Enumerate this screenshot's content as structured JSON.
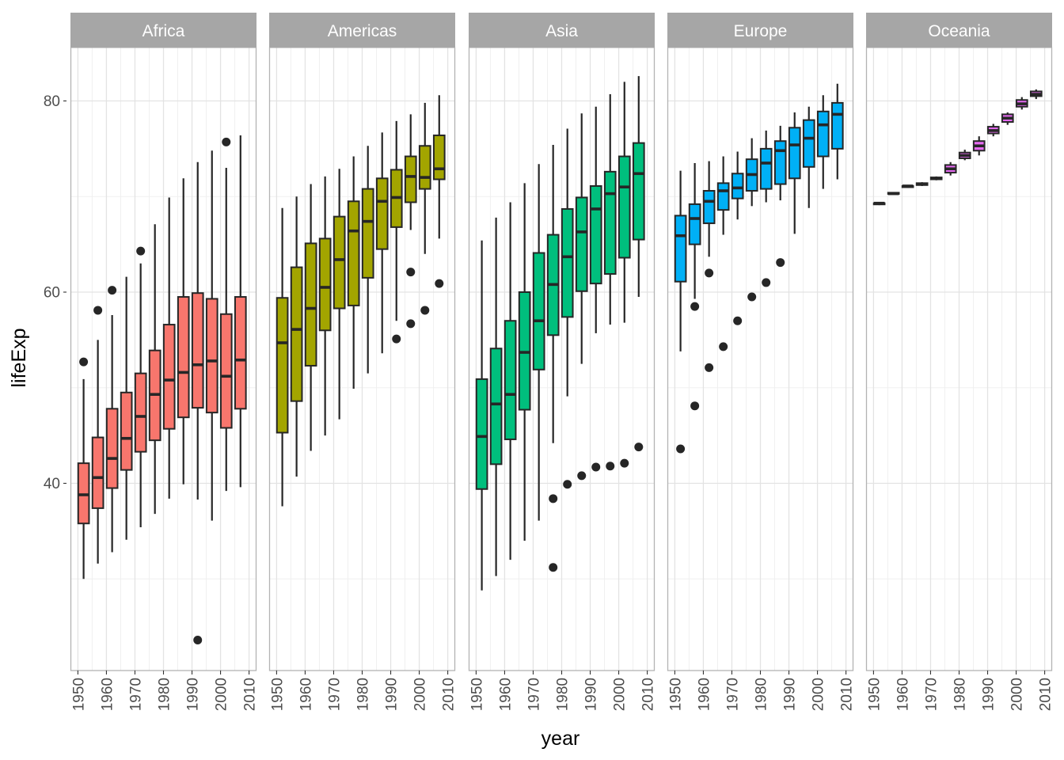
{
  "chart_data": {
    "type": "boxplot",
    "facet_by": "continent",
    "xlabel": "year",
    "ylabel": "lifeExp",
    "xlim": [
      1950,
      2010
    ],
    "ylim": [
      21.5,
      86
    ],
    "x_ticks": [
      "1950",
      "1960",
      "1970",
      "1980",
      "1990",
      "2000",
      "2010"
    ],
    "y_ticks": [
      40,
      60,
      80
    ],
    "grid": true,
    "legend": "none",
    "panels": [
      {
        "name": "Africa",
        "color": "#F8766D",
        "boxes": [
          {
            "x": 1952,
            "lower": 30.0,
            "q1": 35.8,
            "median": 38.8,
            "q3": 42.1,
            "upper": 50.9,
            "outliers": [
              52.7
            ]
          },
          {
            "x": 1957,
            "lower": 31.6,
            "q1": 37.4,
            "median": 40.6,
            "q3": 44.8,
            "upper": 55.0,
            "outliers": [
              58.1
            ]
          },
          {
            "x": 1962,
            "lower": 32.8,
            "q1": 39.5,
            "median": 42.6,
            "q3": 47.8,
            "upper": 57.6,
            "outliers": [
              60.2
            ]
          },
          {
            "x": 1967,
            "lower": 34.1,
            "q1": 41.4,
            "median": 44.7,
            "q3": 49.5,
            "upper": 61.6,
            "outliers": []
          },
          {
            "x": 1972,
            "lower": 35.4,
            "q1": 43.3,
            "median": 47.0,
            "q3": 51.5,
            "upper": 63.0,
            "outliers": [
              64.3
            ]
          },
          {
            "x": 1977,
            "lower": 36.8,
            "q1": 44.5,
            "median": 49.3,
            "q3": 53.9,
            "upper": 67.1,
            "outliers": []
          },
          {
            "x": 1982,
            "lower": 38.4,
            "q1": 45.7,
            "median": 50.8,
            "q3": 56.6,
            "upper": 69.9,
            "outliers": []
          },
          {
            "x": 1987,
            "lower": 39.9,
            "q1": 46.9,
            "median": 51.6,
            "q3": 59.5,
            "upper": 71.9,
            "outliers": []
          },
          {
            "x": 1992,
            "lower": 38.3,
            "q1": 47.9,
            "median": 52.4,
            "q3": 59.9,
            "upper": 73.6,
            "outliers": [
              23.6
            ]
          },
          {
            "x": 1997,
            "lower": 36.1,
            "q1": 47.4,
            "median": 52.8,
            "q3": 59.3,
            "upper": 74.8,
            "outliers": []
          },
          {
            "x": 2002,
            "lower": 39.2,
            "q1": 45.8,
            "median": 51.2,
            "q3": 57.7,
            "upper": 73.0,
            "outliers": [
              75.7
            ]
          },
          {
            "x": 2007,
            "lower": 39.6,
            "q1": 47.8,
            "median": 52.9,
            "q3": 59.5,
            "upper": 76.4,
            "outliers": []
          }
        ]
      },
      {
        "name": "Americas",
        "color": "#A3A500",
        "boxes": [
          {
            "x": 1952,
            "lower": 37.6,
            "q1": 45.3,
            "median": 54.7,
            "q3": 59.4,
            "upper": 68.8,
            "outliers": []
          },
          {
            "x": 1957,
            "lower": 40.7,
            "q1": 48.6,
            "median": 56.1,
            "q3": 62.6,
            "upper": 70.0,
            "outliers": []
          },
          {
            "x": 1962,
            "lower": 43.4,
            "q1": 52.3,
            "median": 58.3,
            "q3": 65.1,
            "upper": 71.3,
            "outliers": []
          },
          {
            "x": 1967,
            "lower": 45.0,
            "q1": 56.0,
            "median": 60.5,
            "q3": 65.6,
            "upper": 72.1,
            "outliers": []
          },
          {
            "x": 1972,
            "lower": 46.7,
            "q1": 58.3,
            "median": 63.4,
            "q3": 67.9,
            "upper": 72.9,
            "outliers": []
          },
          {
            "x": 1977,
            "lower": 49.9,
            "q1": 58.6,
            "median": 66.4,
            "q3": 69.5,
            "upper": 74.2,
            "outliers": []
          },
          {
            "x": 1982,
            "lower": 51.5,
            "q1": 61.5,
            "median": 67.4,
            "q3": 70.8,
            "upper": 75.3,
            "outliers": []
          },
          {
            "x": 1987,
            "lower": 53.6,
            "q1": 64.5,
            "median": 69.5,
            "q3": 71.9,
            "upper": 76.7,
            "outliers": []
          },
          {
            "x": 1992,
            "lower": 57.0,
            "q1": 66.8,
            "median": 69.9,
            "q3": 72.8,
            "upper": 77.9,
            "outliers": [
              55.1
            ]
          },
          {
            "x": 1997,
            "lower": 66.5,
            "q1": 69.4,
            "median": 72.1,
            "q3": 74.2,
            "upper": 78.6,
            "outliers": [
              56.7,
              62.1
            ]
          },
          {
            "x": 2002,
            "lower": 64.0,
            "q1": 70.8,
            "median": 72.0,
            "q3": 75.3,
            "upper": 79.8,
            "outliers": [
              58.1
            ]
          },
          {
            "x": 2007,
            "lower": 65.6,
            "q1": 71.8,
            "median": 72.9,
            "q3": 76.4,
            "upper": 80.6,
            "outliers": [
              60.9
            ]
          }
        ]
      },
      {
        "name": "Asia",
        "color": "#00BF7D",
        "boxes": [
          {
            "x": 1952,
            "lower": 28.8,
            "q1": 39.4,
            "median": 44.9,
            "q3": 50.9,
            "upper": 65.4,
            "outliers": []
          },
          {
            "x": 1957,
            "lower": 30.3,
            "q1": 42.0,
            "median": 48.3,
            "q3": 54.1,
            "upper": 67.8,
            "outliers": []
          },
          {
            "x": 1962,
            "lower": 32.0,
            "q1": 44.6,
            "median": 49.3,
            "q3": 57.0,
            "upper": 69.4,
            "outliers": []
          },
          {
            "x": 1967,
            "lower": 34.0,
            "q1": 47.7,
            "median": 53.7,
            "q3": 60.0,
            "upper": 71.4,
            "outliers": []
          },
          {
            "x": 1972,
            "lower": 36.1,
            "q1": 51.9,
            "median": 57.0,
            "q3": 64.1,
            "upper": 73.4,
            "outliers": []
          },
          {
            "x": 1977,
            "lower": 44.2,
            "q1": 55.5,
            "median": 60.8,
            "q3": 66.0,
            "upper": 75.4,
            "outliers": [
              38.4,
              31.2
            ]
          },
          {
            "x": 1982,
            "lower": 49.1,
            "q1": 57.4,
            "median": 63.7,
            "q3": 68.7,
            "upper": 77.1,
            "outliers": [
              39.9
            ]
          },
          {
            "x": 1987,
            "lower": 52.5,
            "q1": 60.1,
            "median": 66.3,
            "q3": 69.9,
            "upper": 78.7,
            "outliers": [
              40.8
            ]
          },
          {
            "x": 1992,
            "lower": 55.7,
            "q1": 60.9,
            "median": 68.7,
            "q3": 71.1,
            "upper": 79.4,
            "outliers": [
              41.7
            ]
          },
          {
            "x": 1997,
            "lower": 56.6,
            "q1": 61.9,
            "median": 70.3,
            "q3": 72.6,
            "upper": 80.7,
            "outliers": [
              41.8
            ]
          },
          {
            "x": 2002,
            "lower": 56.8,
            "q1": 63.6,
            "median": 71.0,
            "q3": 74.2,
            "upper": 82.0,
            "outliers": [
              42.1
            ]
          },
          {
            "x": 2007,
            "lower": 59.5,
            "q1": 65.5,
            "median": 72.4,
            "q3": 75.6,
            "upper": 82.6,
            "outliers": [
              43.8
            ]
          }
        ]
      },
      {
        "name": "Europe",
        "color": "#00B0F6",
        "boxes": [
          {
            "x": 1952,
            "lower": 53.8,
            "q1": 61.1,
            "median": 65.9,
            "q3": 68.0,
            "upper": 72.7,
            "outliers": [
              43.6
            ]
          },
          {
            "x": 1957,
            "lower": 59.3,
            "q1": 65.0,
            "median": 67.7,
            "q3": 69.2,
            "upper": 73.5,
            "outliers": [
              58.5,
              48.1
            ]
          },
          {
            "x": 1962,
            "lower": 63.7,
            "q1": 67.2,
            "median": 69.5,
            "q3": 70.6,
            "upper": 73.7,
            "outliers": [
              62.0,
              52.1
            ]
          },
          {
            "x": 1967,
            "lower": 66.0,
            "q1": 68.6,
            "median": 70.6,
            "q3": 71.4,
            "upper": 74.2,
            "outliers": [
              54.3
            ]
          },
          {
            "x": 1972,
            "lower": 67.6,
            "q1": 69.8,
            "median": 70.9,
            "q3": 72.4,
            "upper": 74.7,
            "outliers": [
              57.0
            ]
          },
          {
            "x": 1977,
            "lower": 69.0,
            "q1": 70.6,
            "median": 72.3,
            "q3": 73.9,
            "upper": 76.1,
            "outliers": [
              59.5
            ]
          },
          {
            "x": 1982,
            "lower": 69.4,
            "q1": 70.8,
            "median": 73.5,
            "q3": 75.0,
            "upper": 76.9,
            "outliers": [
              61.0
            ]
          },
          {
            "x": 1987,
            "lower": 69.6,
            "q1": 71.3,
            "median": 74.8,
            "q3": 75.8,
            "upper": 77.4,
            "outliers": [
              63.1
            ]
          },
          {
            "x": 1992,
            "lower": 66.1,
            "q1": 71.9,
            "median": 75.4,
            "q3": 77.2,
            "upper": 78.8,
            "outliers": []
          },
          {
            "x": 1997,
            "lower": 68.8,
            "q1": 73.1,
            "median": 76.1,
            "q3": 78.0,
            "upper": 79.4,
            "outliers": []
          },
          {
            "x": 2002,
            "lower": 70.8,
            "q1": 74.2,
            "median": 77.5,
            "q3": 78.9,
            "upper": 80.6,
            "outliers": []
          },
          {
            "x": 2007,
            "lower": 71.8,
            "q1": 75.0,
            "median": 78.6,
            "q3": 79.8,
            "upper": 81.8,
            "outliers": []
          }
        ]
      },
      {
        "name": "Oceania",
        "color": "#E76BF3",
        "boxes": [
          {
            "x": 1952,
            "lower": 69.1,
            "q1": 69.2,
            "median": 69.3,
            "q3": 69.3,
            "upper": 69.4,
            "outliers": []
          },
          {
            "x": 1957,
            "lower": 70.3,
            "q1": 70.3,
            "median": 70.3,
            "q3": 70.4,
            "upper": 70.4,
            "outliers": []
          },
          {
            "x": 1962,
            "lower": 70.9,
            "q1": 71.0,
            "median": 71.1,
            "q3": 71.1,
            "upper": 71.2,
            "outliers": []
          },
          {
            "x": 1967,
            "lower": 71.1,
            "q1": 71.2,
            "median": 71.3,
            "q3": 71.4,
            "upper": 71.5,
            "outliers": []
          },
          {
            "x": 1972,
            "lower": 71.7,
            "q1": 71.8,
            "median": 71.9,
            "q3": 72.0,
            "upper": 72.1,
            "outliers": []
          },
          {
            "x": 1977,
            "lower": 72.2,
            "q1": 72.5,
            "median": 72.9,
            "q3": 73.3,
            "upper": 73.6,
            "outliers": []
          },
          {
            "x": 1982,
            "lower": 73.8,
            "q1": 74.0,
            "median": 74.3,
            "q3": 74.6,
            "upper": 74.9,
            "outliers": []
          },
          {
            "x": 1987,
            "lower": 74.3,
            "q1": 74.8,
            "median": 75.3,
            "q3": 75.8,
            "upper": 76.3,
            "outliers": []
          },
          {
            "x": 1992,
            "lower": 76.3,
            "q1": 76.6,
            "median": 76.9,
            "q3": 77.3,
            "upper": 77.6,
            "outliers": []
          },
          {
            "x": 1997,
            "lower": 77.5,
            "q1": 77.8,
            "median": 78.2,
            "q3": 78.6,
            "upper": 78.8,
            "outliers": []
          },
          {
            "x": 2002,
            "lower": 79.1,
            "q1": 79.4,
            "median": 79.7,
            "q3": 80.1,
            "upper": 80.4,
            "outliers": []
          },
          {
            "x": 2007,
            "lower": 80.2,
            "q1": 80.5,
            "median": 80.7,
            "q3": 81.0,
            "upper": 81.2,
            "outliers": []
          }
        ]
      }
    ]
  }
}
